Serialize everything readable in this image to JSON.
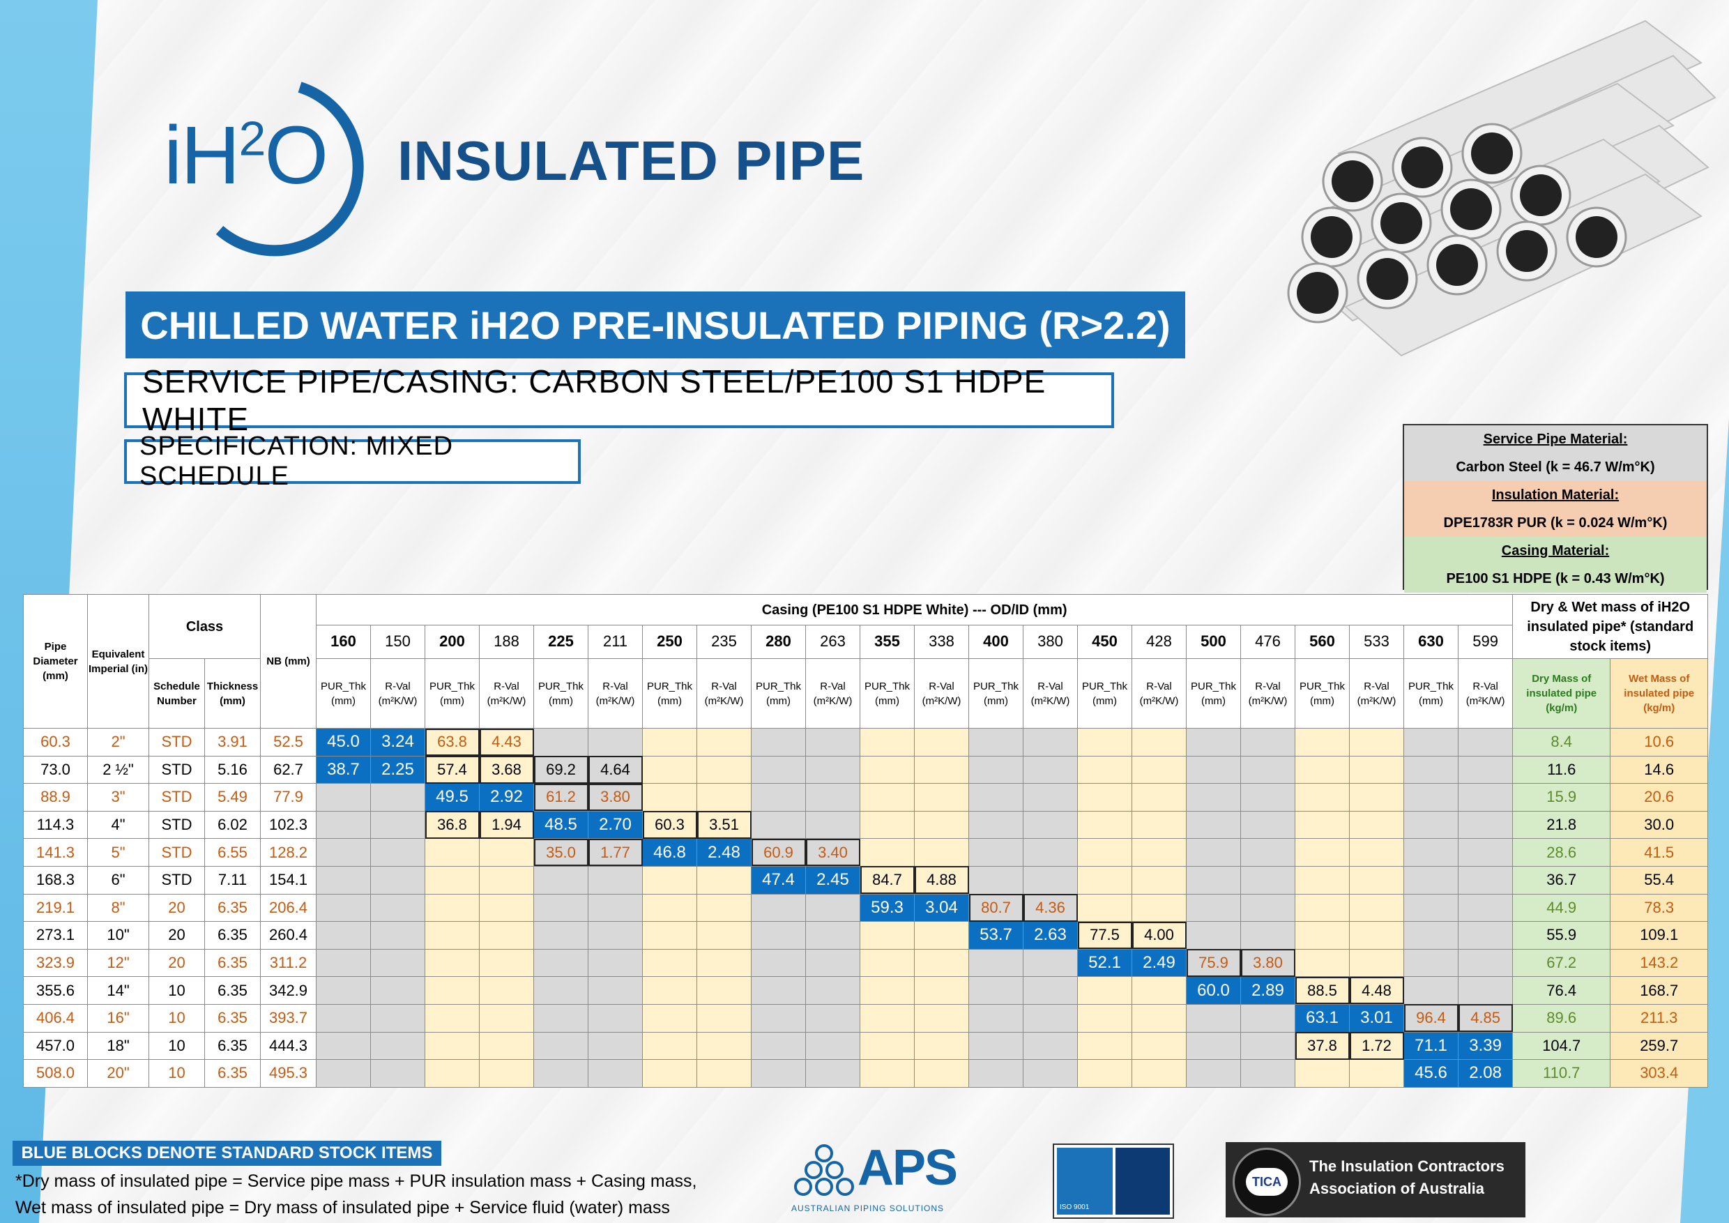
{
  "logo": {
    "text": "iH",
    "sup": "2",
    "o": "O"
  },
  "brand_title": "INSULATED PIPE",
  "banner": "CHILLED WATER iH2O PRE-INSULATED PIPING (R>2.2)",
  "service_line": "SERVICE PIPE/CASING: CARBON STEEL/PE100 S1 HDPE WHITE",
  "spec_line": "SPECIFICATION: MIXED SCHEDULE",
  "materials": {
    "service_heading": "Service Pipe Material:",
    "service_value": "Carbon Steel    (k = 46.7 W/m°K)",
    "insulation_heading": "Insulation Material:",
    "insulation_value": "DPE1783R PUR    (k = 0.024 W/m°K)",
    "casing_heading": "Casing Material:",
    "casing_value": "PE100 S1 HDPE    (k = 0.43 W/m°K)"
  },
  "table": {
    "h_pipe_diameter": "Pipe Diameter (mm)",
    "h_equiv_imperial": "Equivalent Imperial (in)",
    "h_class": "Class",
    "h_schedule": "Schedule Number",
    "h_thickness": "Thickness (mm)",
    "h_nb": "NB (mm)",
    "h_casing": "Casing (PE100 S1 HDPE White) --- OD/ID (mm)",
    "h_mass": "Dry & Wet mass of iH2O insulated pipe* (standard stock items)",
    "h_pur": "PUR_Thk (mm)",
    "h_rval": "R-Val (m²K/W)",
    "h_dry": "Dry Mass of insulated pipe (kg/m)",
    "h_wet": "Wet Mass of insulated pipe (kg/m)",
    "casings": [
      {
        "od": "160",
        "id": "150"
      },
      {
        "od": "200",
        "id": "188"
      },
      {
        "od": "225",
        "id": "211"
      },
      {
        "od": "250",
        "id": "235"
      },
      {
        "od": "280",
        "id": "263"
      },
      {
        "od": "355",
        "id": "338"
      },
      {
        "od": "400",
        "id": "380"
      },
      {
        "od": "450",
        "id": "428"
      },
      {
        "od": "500",
        "id": "476"
      },
      {
        "od": "560",
        "id": "533"
      },
      {
        "od": "630",
        "id": "599"
      }
    ],
    "rows": [
      {
        "pd": "60.3",
        "imp": "2\"",
        "sch": "STD",
        "thk": "3.91",
        "nb": "52.5",
        "orange": true,
        "cells": [
          [
            "45.0",
            "3.24",
            "s"
          ],
          [
            "63.8",
            "4.43",
            "n"
          ]
        ],
        "start": 0,
        "dry": "8.4",
        "wet": "10.6"
      },
      {
        "pd": "73.0",
        "imp": "2 ½\"",
        "sch": "STD",
        "thk": "5.16",
        "nb": "62.7",
        "orange": false,
        "cells": [
          [
            "38.7",
            "2.25",
            "s"
          ],
          [
            "57.4",
            "3.68",
            "n"
          ],
          [
            "69.2",
            "4.64",
            "n"
          ]
        ],
        "start": 0,
        "dry": "11.6",
        "wet": "14.6"
      },
      {
        "pd": "88.9",
        "imp": "3\"",
        "sch": "STD",
        "thk": "5.49",
        "nb": "77.9",
        "orange": true,
        "cells": [
          [
            "49.5",
            "2.92",
            "s"
          ],
          [
            "61.2",
            "3.80",
            "n"
          ]
        ],
        "start": 1,
        "dry": "15.9",
        "wet": "20.6"
      },
      {
        "pd": "114.3",
        "imp": "4\"",
        "sch": "STD",
        "thk": "6.02",
        "nb": "102.3",
        "orange": false,
        "cells": [
          [
            "36.8",
            "1.94",
            "n"
          ],
          [
            "48.5",
            "2.70",
            "s"
          ],
          [
            "60.3",
            "3.51",
            "n"
          ]
        ],
        "start": 1,
        "dry": "21.8",
        "wet": "30.0"
      },
      {
        "pd": "141.3",
        "imp": "5\"",
        "sch": "STD",
        "thk": "6.55",
        "nb": "128.2",
        "orange": true,
        "cells": [
          [
            "35.0",
            "1.77",
            "n"
          ],
          [
            "46.8",
            "2.48",
            "s"
          ],
          [
            "60.9",
            "3.40",
            "n"
          ]
        ],
        "start": 2,
        "dry": "28.6",
        "wet": "41.5"
      },
      {
        "pd": "168.3",
        "imp": "6\"",
        "sch": "STD",
        "thk": "7.11",
        "nb": "154.1",
        "orange": false,
        "cells": [
          [
            "47.4",
            "2.45",
            "s"
          ],
          [
            "84.7",
            "4.88",
            "n"
          ]
        ],
        "start": 4,
        "dry": "36.7",
        "wet": "55.4"
      },
      {
        "pd": "219.1",
        "imp": "8\"",
        "sch": "20",
        "thk": "6.35",
        "nb": "206.4",
        "orange": true,
        "cells": [
          [
            "59.3",
            "3.04",
            "s"
          ],
          [
            "80.7",
            "4.36",
            "n"
          ]
        ],
        "start": 5,
        "dry": "44.9",
        "wet": "78.3"
      },
      {
        "pd": "273.1",
        "imp": "10\"",
        "sch": "20",
        "thk": "6.35",
        "nb": "260.4",
        "orange": false,
        "cells": [
          [
            "53.7",
            "2.63",
            "s"
          ],
          [
            "77.5",
            "4.00",
            "n"
          ]
        ],
        "start": 6,
        "dry": "55.9",
        "wet": "109.1"
      },
      {
        "pd": "323.9",
        "imp": "12\"",
        "sch": "20",
        "thk": "6.35",
        "nb": "311.2",
        "orange": true,
        "cells": [
          [
            "52.1",
            "2.49",
            "s"
          ],
          [
            "75.9",
            "3.80",
            "n"
          ]
        ],
        "start": 7,
        "dry": "67.2",
        "wet": "143.2"
      },
      {
        "pd": "355.6",
        "imp": "14\"",
        "sch": "10",
        "thk": "6.35",
        "nb": "342.9",
        "orange": false,
        "cells": [
          [
            "60.0",
            "2.89",
            "s"
          ],
          [
            "88.5",
            "4.48",
            "n"
          ]
        ],
        "start": 8,
        "dry": "76.4",
        "wet": "168.7"
      },
      {
        "pd": "406.4",
        "imp": "16\"",
        "sch": "10",
        "thk": "6.35",
        "nb": "393.7",
        "orange": true,
        "cells": [
          [
            "63.1",
            "3.01",
            "s"
          ],
          [
            "96.4",
            "4.85",
            "n"
          ]
        ],
        "start": 9,
        "dry": "89.6",
        "wet": "211.3"
      },
      {
        "pd": "457.0",
        "imp": "18\"",
        "sch": "10",
        "thk": "6.35",
        "nb": "444.3",
        "orange": false,
        "cells": [
          [
            "37.8",
            "1.72",
            "n"
          ],
          [
            "71.1",
            "3.39",
            "s"
          ]
        ],
        "start": 9,
        "dry": "104.7",
        "wet": "259.7"
      },
      {
        "pd": "508.0",
        "imp": "20\"",
        "sch": "10",
        "thk": "6.35",
        "nb": "495.3",
        "orange": true,
        "cells": [
          [
            "45.6",
            "2.08",
            "s"
          ]
        ],
        "start": 10,
        "dry": "110.7",
        "wet": "303.4"
      }
    ]
  },
  "footer": {
    "tag": "BLUE BLOCKS DENOTE STANDARD STOCK ITEMS",
    "note1": "*Dry mass of insulated pipe = Service pipe mass + PUR insulation mass + Casing mass,",
    "note2": "Wet mass of insulated pipe = Dry mass of insulated pipe + Service fluid (water) mass",
    "aps": "APS",
    "aps_sub": "AUSTRALIAN PIPING SOLUTIONS",
    "cert_label": "ISO 9001",
    "tica_abbr": "TICA",
    "tica_line1": "The Insulation Contractors",
    "tica_line2": "Association of Australia"
  }
}
